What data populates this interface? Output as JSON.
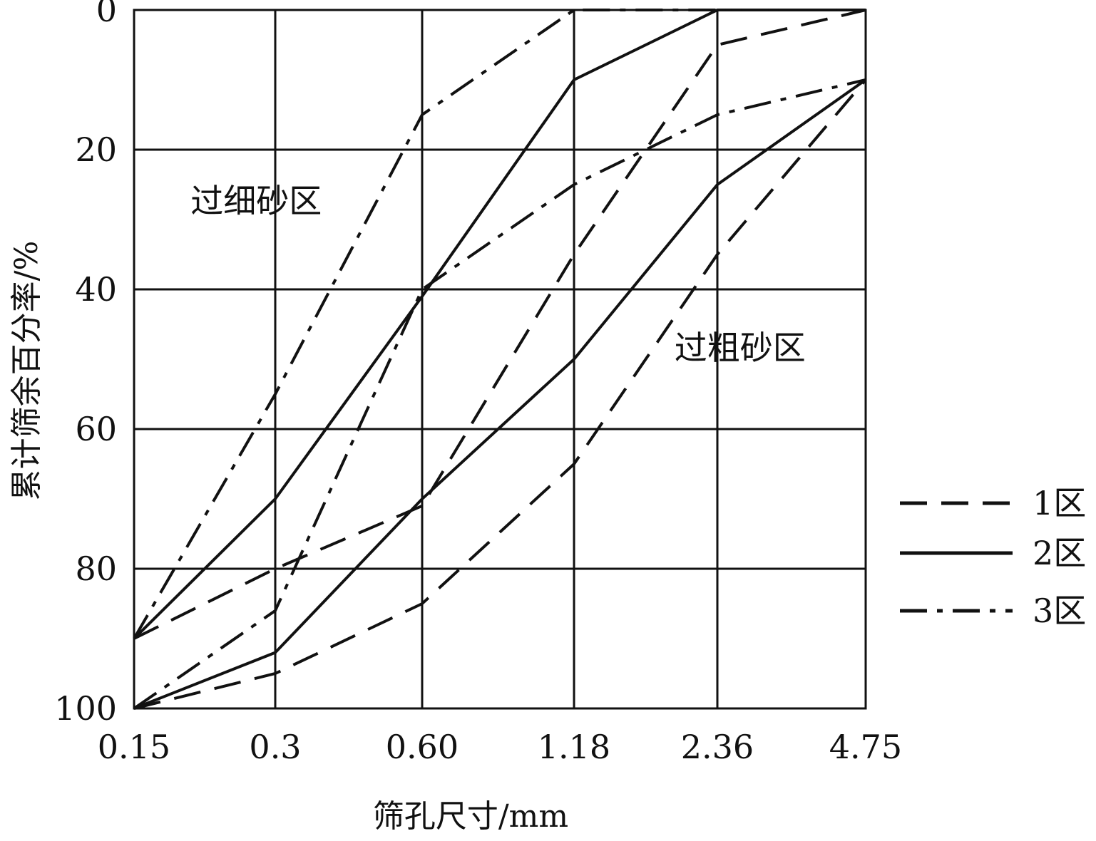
{
  "chart_data": {
    "type": "line",
    "title": "",
    "xlabel": "筛孔尺寸/mm",
    "ylabel": "累计筛余百分率/%",
    "x_categories": [
      "0.15",
      "0.3",
      "0.60",
      "1.18",
      "2.36",
      "4.75"
    ],
    "y_ticks": [
      "0",
      "20",
      "40",
      "60",
      "80",
      "100"
    ],
    "ylim": [
      0,
      100
    ],
    "y_inverted": true,
    "grid": true,
    "annotations": [
      {
        "text": "过细砂区",
        "x_index": 0.4,
        "y": 29
      },
      {
        "text": "过粗砂区",
        "x_index": 3.7,
        "y": 50
      }
    ],
    "series": [
      {
        "name": "1区",
        "style": "dashed",
        "bound": "upper",
        "values": [
          90,
          80,
          71,
          35,
          5,
          0
        ]
      },
      {
        "name": "1区",
        "style": "dashed",
        "bound": "lower",
        "values": [
          100,
          95,
          85,
          65,
          35,
          10
        ]
      },
      {
        "name": "2区",
        "style": "solid",
        "bound": "upper",
        "values": [
          90,
          70,
          41,
          10,
          0,
          0
        ]
      },
      {
        "name": "2区",
        "style": "solid",
        "bound": "lower",
        "values": [
          100,
          92,
          70,
          50,
          25,
          10
        ]
      },
      {
        "name": "3区",
        "style": "dashdot",
        "bound": "upper",
        "values": [
          90,
          55,
          15,
          0,
          0,
          0
        ]
      },
      {
        "name": "3区",
        "style": "dashdot",
        "bound": "lower",
        "values": [
          100,
          86,
          40,
          25,
          15,
          10
        ]
      }
    ],
    "legend": {
      "placement": "right",
      "items": [
        {
          "label": "1区",
          "style": "dashed"
        },
        {
          "label": "2区",
          "style": "solid"
        },
        {
          "label": "3区",
          "style": "dashdot"
        }
      ]
    },
    "colors": {
      "line": "#111111",
      "grid": "#111111",
      "background": "#ffffff"
    }
  }
}
